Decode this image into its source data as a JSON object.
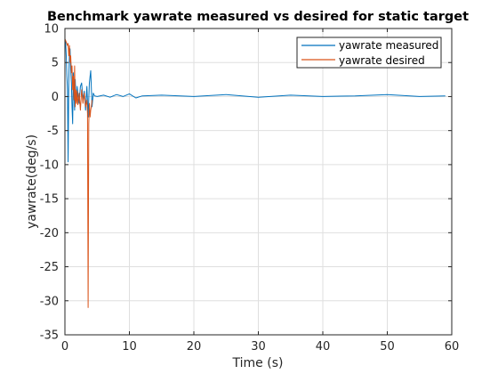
{
  "chart_data": {
    "type": "line",
    "title": "Benchmark yawrate measured vs desired for static target",
    "xlabel": "Time (s)",
    "ylabel": "yawrate(deg/s)",
    "xlim": [
      0,
      60
    ],
    "ylim": [
      -35,
      10
    ],
    "xticks": [
      0,
      10,
      20,
      30,
      40,
      50,
      60
    ],
    "yticks": [
      10,
      5,
      0,
      -5,
      -10,
      -15,
      -20,
      -25,
      -30,
      -35
    ],
    "grid": true,
    "legend_position": "top-right",
    "series": [
      {
        "name": "yawrate measured",
        "color": "#0072bd",
        "x": [
          0,
          0.1,
          0.2,
          0.3,
          0.4,
          0.5,
          0.6,
          0.7,
          0.8,
          0.9,
          1.0,
          1.1,
          1.2,
          1.3,
          1.4,
          1.5,
          1.6,
          1.7,
          1.8,
          1.9,
          2.0,
          2.2,
          2.4,
          2.6,
          2.8,
          3.0,
          3.2,
          3.4,
          3.6,
          3.8,
          4.0,
          4.2,
          4.4,
          4.6,
          5,
          6,
          7,
          8,
          9,
          10,
          11,
          12,
          15,
          20,
          25,
          30,
          35,
          40,
          45,
          50,
          55,
          59
        ],
        "y": [
          7.5,
          8.2,
          6.0,
          3.0,
          1.0,
          -9.6,
          2.0,
          6.5,
          7.0,
          4.0,
          2.0,
          -1.5,
          -4.0,
          3.5,
          1.0,
          -2.0,
          2.5,
          0.0,
          -1.0,
          1.5,
          0.5,
          -1.0,
          1.5,
          2.0,
          -0.5,
          0.8,
          -2.0,
          1.5,
          -3.0,
          2.0,
          3.8,
          -1.5,
          0.5,
          0.1,
          0.0,
          0.2,
          -0.1,
          0.3,
          0.0,
          0.4,
          -0.2,
          0.1,
          0.2,
          0.0,
          0.3,
          -0.1,
          0.2,
          0.0,
          0.1,
          0.3,
          0.0,
          0.1
        ]
      },
      {
        "name": "yawrate desired",
        "color": "#d95319",
        "x": [
          0,
          0.2,
          0.4,
          0.5,
          0.6,
          0.7,
          0.8,
          0.9,
          1.0,
          1.1,
          1.2,
          1.3,
          1.4,
          1.5,
          1.6,
          1.7,
          1.8,
          1.9,
          2.0,
          2.2,
          2.4,
          2.6,
          2.8,
          3.0,
          3.2,
          3.4,
          3.5,
          3.6,
          3.7,
          3.8,
          3.9,
          4.0,
          4.1,
          4.2
        ],
        "y": [
          8.5,
          8.0,
          7.5,
          7.8,
          6.0,
          7.5,
          5.0,
          6.0,
          3.5,
          4.5,
          1.0,
          3.0,
          -0.5,
          4.5,
          -1.5,
          1.0,
          -1.0,
          0.8,
          -1.2,
          0.5,
          -2.0,
          1.0,
          -1.0,
          0.5,
          -1.5,
          -0.5,
          -2.5,
          -31.0,
          -4.0,
          -1.0,
          -3.0,
          -2.0,
          -1.5,
          -0.5
        ]
      }
    ]
  }
}
